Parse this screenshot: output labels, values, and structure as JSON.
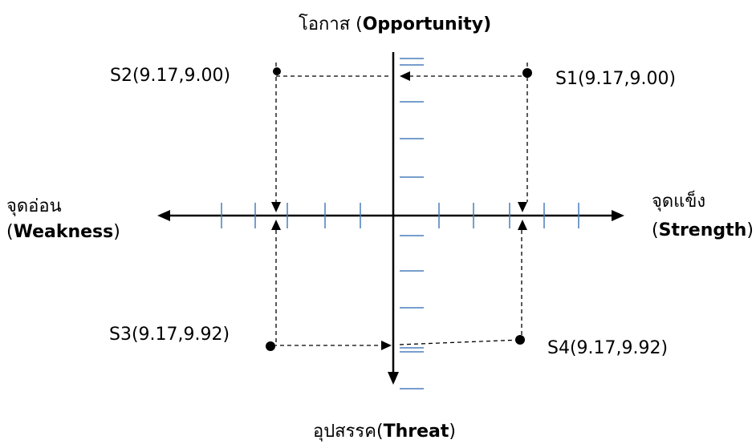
{
  "axes": {
    "top": {
      "thai": "โอกาส",
      "open": " (",
      "english": "Opportunity)",
      "close": ""
    },
    "bottom": {
      "thai": "อุปสรรค",
      "open": "(",
      "english": "Threat",
      "close": ")"
    },
    "left": {
      "thai": "จุดอ่อน",
      "open": "(",
      "english": "Weakness",
      "close": ")"
    },
    "right": {
      "thai": "จุดแข็ง",
      "open": "(",
      "english": "Strength",
      "close": ")"
    }
  },
  "points": {
    "s1": "S1(9.17,9.00)",
    "s2": "S2(9.17,9.00)",
    "s3": "S3(9.17,9.92)",
    "s4": "S4(9.17,9.92)"
  },
  "colors": {
    "axis": "#000000",
    "tick": "#4a7ebb",
    "dashed": "#000000"
  }
}
